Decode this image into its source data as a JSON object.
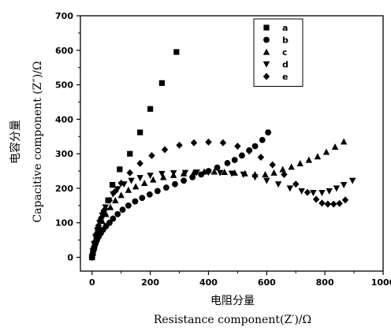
{
  "chart_data": {
    "type": "scatter",
    "xlabel_cn": "电阻分量",
    "xlabel_en": "Resistance component(Z′)/Ω",
    "ylabel_cn": "电容分量",
    "ylabel_en": "Capacitive component (Z″)/Ω",
    "xlim": [
      -40,
      1000
    ],
    "ylim": [
      -40,
      700
    ],
    "xticks": [
      0,
      200,
      400,
      600,
      800,
      1000
    ],
    "yticks": [
      0,
      100,
      200,
      300,
      400,
      500,
      600,
      700
    ],
    "legend_position": "top-right",
    "series": [
      {
        "name": "a",
        "marker": "square",
        "points": [
          [
            0,
            0
          ],
          [
            3,
            12
          ],
          [
            6,
            25
          ],
          [
            10,
            40
          ],
          [
            15,
            60
          ],
          [
            20,
            80
          ],
          [
            30,
            105
          ],
          [
            40,
            130
          ],
          [
            55,
            165
          ],
          [
            70,
            210
          ],
          [
            95,
            255
          ],
          [
            130,
            300
          ],
          [
            165,
            362
          ],
          [
            200,
            430
          ],
          [
            240,
            505
          ],
          [
            290,
            595
          ]
        ]
      },
      {
        "name": "b",
        "marker": "circle",
        "points": [
          [
            0,
            0
          ],
          [
            2,
            10
          ],
          [
            5,
            20
          ],
          [
            8,
            30
          ],
          [
            12,
            40
          ],
          [
            17,
            50
          ],
          [
            23,
            60
          ],
          [
            30,
            70
          ],
          [
            38,
            80
          ],
          [
            48,
            90
          ],
          [
            60,
            100
          ],
          [
            72,
            112
          ],
          [
            88,
            125
          ],
          [
            105,
            138
          ],
          [
            125,
            150
          ],
          [
            148,
            162
          ],
          [
            172,
            172
          ],
          [
            198,
            182
          ],
          [
            225,
            192
          ],
          [
            255,
            202
          ],
          [
            285,
            212
          ],
          [
            315,
            222
          ],
          [
            345,
            232
          ],
          [
            375,
            240
          ],
          [
            400,
            250
          ],
          [
            430,
            260
          ],
          [
            465,
            273
          ],
          [
            490,
            282
          ],
          [
            515,
            295
          ],
          [
            540,
            310
          ],
          [
            560,
            322
          ],
          [
            585,
            340
          ],
          [
            605,
            362
          ]
        ]
      },
      {
        "name": "c",
        "marker": "triangle-up",
        "points": [
          [
            0,
            0
          ],
          [
            3,
            15
          ],
          [
            7,
            30
          ],
          [
            12,
            48
          ],
          [
            18,
            65
          ],
          [
            26,
            85
          ],
          [
            35,
            105
          ],
          [
            48,
            125
          ],
          [
            63,
            145
          ],
          [
            80,
            165
          ],
          [
            100,
            180
          ],
          [
            125,
            195
          ],
          [
            150,
            205
          ],
          [
            180,
            215
          ],
          [
            210,
            225
          ],
          [
            245,
            232
          ],
          [
            280,
            238
          ],
          [
            315,
            243
          ],
          [
            350,
            246
          ],
          [
            385,
            248
          ],
          [
            420,
            248
          ],
          [
            455,
            247
          ],
          [
            490,
            245
          ],
          [
            525,
            243
          ],
          [
            560,
            240
          ],
          [
            595,
            240
          ],
          [
            625,
            245
          ],
          [
            655,
            255
          ],
          [
            685,
            262
          ],
          [
            715,
            272
          ],
          [
            745,
            282
          ],
          [
            775,
            292
          ],
          [
            805,
            305
          ],
          [
            835,
            320
          ],
          [
            865,
            335
          ]
        ]
      },
      {
        "name": "d",
        "marker": "triangle-down",
        "points": [
          [
            0,
            0
          ],
          [
            3,
            18
          ],
          [
            7,
            38
          ],
          [
            12,
            58
          ],
          [
            18,
            78
          ],
          [
            26,
            100
          ],
          [
            35,
            122
          ],
          [
            46,
            145
          ],
          [
            58,
            165
          ],
          [
            72,
            183
          ],
          [
            88,
            198
          ],
          [
            110,
            212
          ],
          [
            135,
            222
          ],
          [
            165,
            230
          ],
          [
            200,
            237
          ],
          [
            240,
            242
          ],
          [
            280,
            244
          ],
          [
            320,
            245
          ],
          [
            360,
            246
          ],
          [
            400,
            246
          ],
          [
            440,
            245
          ],
          [
            480,
            243
          ],
          [
            520,
            240
          ],
          [
            560,
            232
          ],
          [
            600,
            222
          ],
          [
            640,
            212
          ],
          [
            680,
            200
          ],
          [
            720,
            192
          ],
          [
            760,
            187
          ],
          [
            790,
            187
          ],
          [
            815,
            192
          ],
          [
            840,
            200
          ],
          [
            865,
            210
          ],
          [
            895,
            222
          ]
        ]
      },
      {
        "name": "e",
        "marker": "diamond",
        "points": [
          [
            0,
            0
          ],
          [
            4,
            22
          ],
          [
            9,
            45
          ],
          [
            15,
            68
          ],
          [
            22,
            92
          ],
          [
            32,
            115
          ],
          [
            45,
            140
          ],
          [
            60,
            165
          ],
          [
            78,
            190
          ],
          [
            100,
            215
          ],
          [
            130,
            245
          ],
          [
            165,
            272
          ],
          [
            205,
            295
          ],
          [
            250,
            312
          ],
          [
            300,
            325
          ],
          [
            350,
            332
          ],
          [
            400,
            334
          ],
          [
            450,
            332
          ],
          [
            500,
            322
          ],
          [
            540,
            308
          ],
          [
            580,
            290
          ],
          [
            620,
            268
          ],
          [
            660,
            240
          ],
          [
            700,
            212
          ],
          [
            740,
            188
          ],
          [
            770,
            168
          ],
          [
            790,
            157
          ],
          [
            810,
            154
          ],
          [
            830,
            154
          ],
          [
            850,
            156
          ],
          [
            870,
            166
          ]
        ]
      }
    ]
  }
}
